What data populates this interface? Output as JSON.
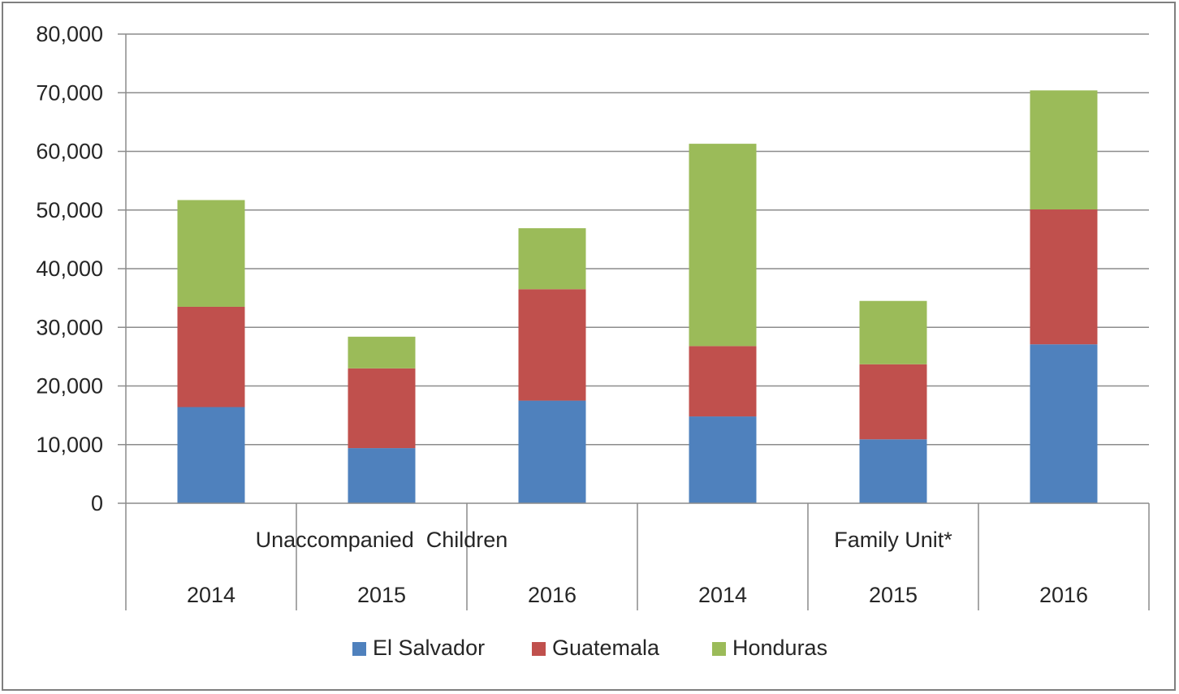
{
  "chart_data": {
    "type": "bar",
    "stacked": true,
    "title": "",
    "xlabel": "",
    "ylabel": "",
    "ylim": [
      0,
      80000
    ],
    "yticks": [
      0,
      10000,
      20000,
      30000,
      40000,
      50000,
      60000,
      70000,
      80000
    ],
    "ytick_labels": [
      "0",
      "10,000",
      "20,000",
      "30,000",
      "40,000",
      "50,000",
      "60,000",
      "70,000",
      "80,000"
    ],
    "grid": true,
    "legend_position": "bottom",
    "categories": [
      "2014",
      "2015",
      "2016",
      "2014",
      "2015",
      "2016"
    ],
    "groups": [
      {
        "label": "Unaccompanied  Children",
        "categories": [
          0,
          1,
          2
        ]
      },
      {
        "label": "Family Unit*",
        "categories": [
          3,
          4,
          5
        ]
      }
    ],
    "series": [
      {
        "name": "El Salvador",
        "color": "#4f81bd",
        "values": [
          16400,
          9400,
          17500,
          14800,
          10900,
          27100
        ]
      },
      {
        "name": "Guatemala",
        "color": "#c0504d",
        "values": [
          17100,
          13600,
          19000,
          12000,
          12800,
          23000
        ]
      },
      {
        "name": "Honduras",
        "color": "#9bbb59",
        "values": [
          18200,
          5400,
          10400,
          34500,
          10800,
          20300
        ]
      }
    ]
  }
}
